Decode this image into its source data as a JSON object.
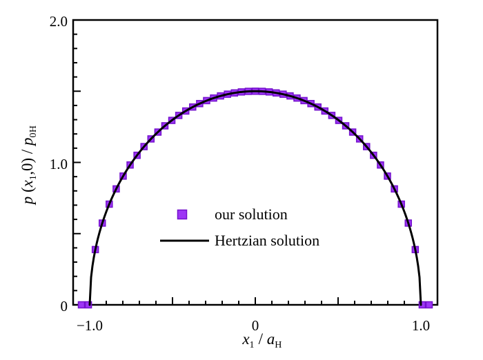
{
  "figure": {
    "background": "#ffffff"
  },
  "chart_data": {
    "type": "scatter",
    "title": "",
    "xlabel": "x1 / aH",
    "ylabel": "p (x1,0) / p0H",
    "xlim": [
      -1.1,
      1.1
    ],
    "ylim": [
      0,
      2.0
    ],
    "grid": false,
    "frame_color": "#000000",
    "x_axis": {
      "minor_step": 0.1,
      "major_ticks": [
        -1.0,
        -0.5,
        0,
        0.5,
        1.0
      ],
      "tick_labels": [
        {
          "v": -1.0,
          "text": "−1.0"
        },
        {
          "v": 0,
          "text": "0"
        },
        {
          "v": 1.0,
          "text": "1.0"
        }
      ]
    },
    "y_axis": {
      "minor_step": 0.1,
      "major_ticks": [
        0,
        0.5,
        1.0,
        1.5,
        2.0
      ],
      "tick_labels": [
        {
          "v": 0,
          "text": "0"
        },
        {
          "v": 1.0,
          "text": "1.0"
        },
        {
          "v": 2.0,
          "text": "2.0"
        }
      ]
    },
    "series": [
      {
        "name": "our solution",
        "type": "scatter",
        "marker": "square",
        "marker_size": 9,
        "fill": "#9D36F5",
        "edge": "#7412CC",
        "x": [
          -1.05,
          -1.008,
          -0.966,
          -0.924,
          -0.882,
          -0.84,
          -0.798,
          -0.756,
          -0.714,
          -0.672,
          -0.63,
          -0.588,
          -0.546,
          -0.504,
          -0.462,
          -0.42,
          -0.378,
          -0.336,
          -0.294,
          -0.252,
          -0.21,
          -0.168,
          -0.126,
          -0.084,
          -0.042,
          0,
          0.042,
          0.084,
          0.126,
          0.168,
          0.21,
          0.252,
          0.294,
          0.336,
          0.378,
          0.42,
          0.462,
          0.504,
          0.546,
          0.588,
          0.63,
          0.672,
          0.714,
          0.756,
          0.798,
          0.84,
          0.882,
          0.924,
          0.966,
          1.008,
          1.05
        ],
        "y": [
          0,
          0,
          0.388,
          0.574,
          0.707,
          0.814,
          0.904,
          0.982,
          1.05,
          1.111,
          1.165,
          1.213,
          1.257,
          1.295,
          1.33,
          1.361,
          1.389,
          1.413,
          1.434,
          1.452,
          1.467,
          1.479,
          1.488,
          1.495,
          1.499,
          1.5,
          1.499,
          1.495,
          1.488,
          1.479,
          1.467,
          1.452,
          1.434,
          1.413,
          1.389,
          1.361,
          1.33,
          1.295,
          1.257,
          1.213,
          1.165,
          1.111,
          1.05,
          0.982,
          0.904,
          0.814,
          0.707,
          0.574,
          0.388,
          0,
          0
        ]
      },
      {
        "name": "Hertzian solution",
        "type": "line",
        "color": "#000000",
        "line_width": 3,
        "peak": 1.5,
        "support": [
          -1.0,
          1.0
        ],
        "formula": "p(x) = 1.5*sqrt(1 - x^2) for |x| <= 1, else 0"
      }
    ],
    "legend": {
      "frame": false,
      "location": "center-inside",
      "items": [
        "our solution",
        "Hertzian solution"
      ]
    }
  },
  "labels": {
    "ylabel": {
      "p1": "p",
      "p2": " (",
      "p3": "x",
      "p4": "1",
      "p5": ",0) / ",
      "p6": "p",
      "p7": "0H"
    },
    "xlabel": {
      "p1": "x",
      "p2": "1",
      "p3": " / ",
      "p4": "a",
      "p5": "H"
    }
  }
}
